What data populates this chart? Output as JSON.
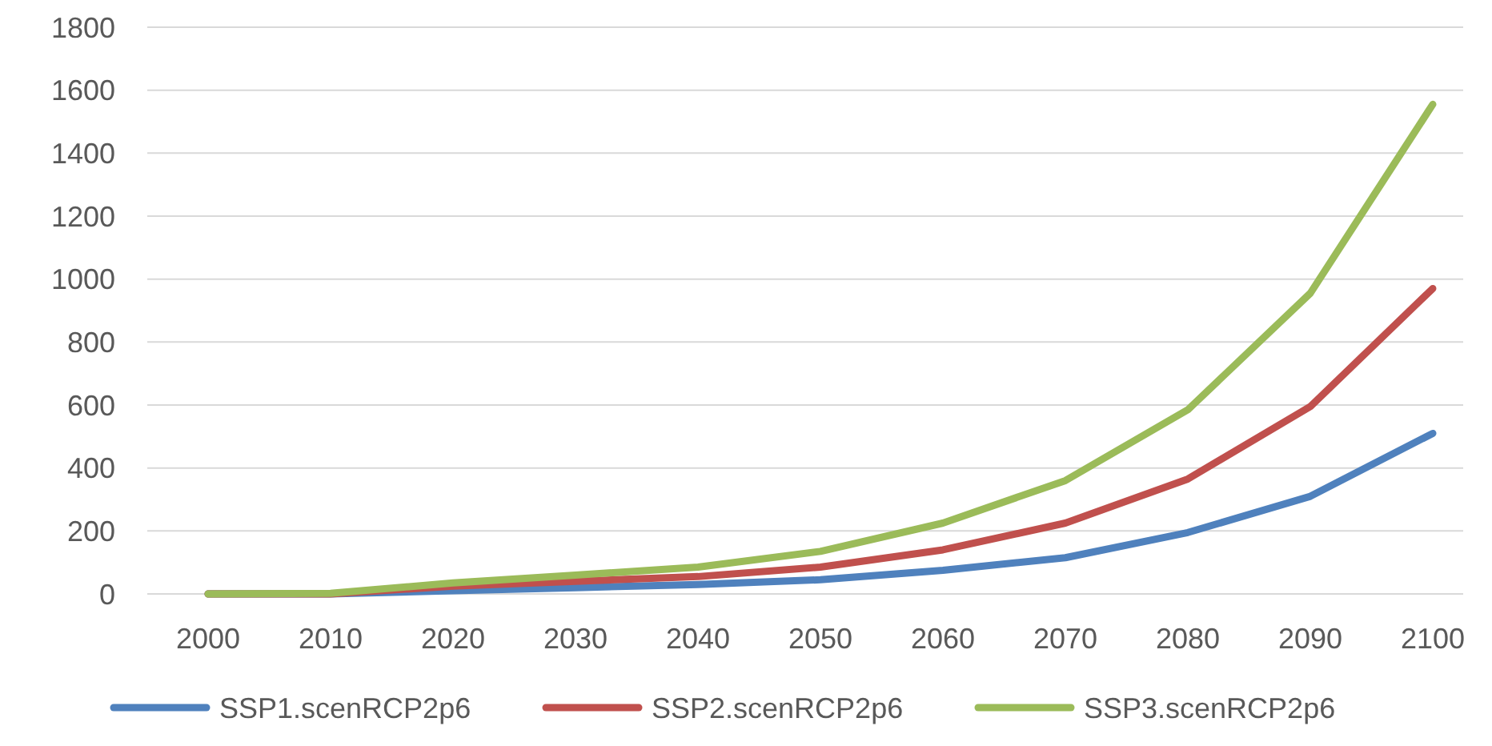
{
  "chart_data": {
    "type": "line",
    "categories": [
      "2000",
      "2010",
      "2020",
      "2030",
      "2040",
      "2050",
      "2060",
      "2070",
      "2080",
      "2090",
      "2100"
    ],
    "series": [
      {
        "name": "SSP1.scenRCP2p6",
        "color": "#4f81bd",
        "values": [
          0,
          0,
          10,
          20,
          30,
          45,
          75,
          115,
          195,
          310,
          510
        ]
      },
      {
        "name": "SSP2.scenRCP2p6",
        "color": "#c0504d",
        "values": [
          0,
          0,
          25,
          40,
          55,
          85,
          140,
          225,
          365,
          595,
          970
        ]
      },
      {
        "name": "SSP3.scenRCP2p6",
        "color": "#9bbb59",
        "values": [
          0,
          2,
          35,
          60,
          85,
          135,
          225,
          360,
          585,
          955,
          1555
        ]
      }
    ],
    "ylim": [
      0,
      1800
    ],
    "yticks": [
      0,
      200,
      400,
      600,
      800,
      1000,
      1200,
      1400,
      1600,
      1800
    ],
    "grid": "y",
    "legend": "bottom",
    "marker": "none",
    "line_style": "solid"
  }
}
